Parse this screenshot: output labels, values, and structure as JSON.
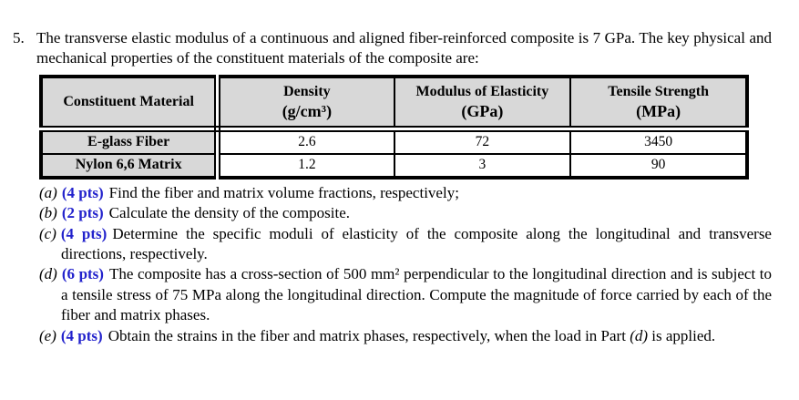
{
  "problem": {
    "number": "5.",
    "intro": "The transverse elastic modulus of a continuous and aligned fiber-reinforced composite is 7 GPa. The key physical and mechanical properties of the constituent materials of the composite are:"
  },
  "table": {
    "columns": [
      {
        "label": "Constituent Material",
        "unit": ""
      },
      {
        "label": "Density",
        "unit": "(g/cm³)"
      },
      {
        "label": "Modulus of Elasticity",
        "unit": "(GPa)"
      },
      {
        "label": "Tensile Strength",
        "unit": "(MPa)"
      }
    ],
    "rows": [
      {
        "material": "E-glass Fiber",
        "values": [
          "2.6",
          "72",
          "3450"
        ]
      },
      {
        "material": "Nylon 6,6 Matrix",
        "values": [
          "1.2",
          "3",
          "90"
        ]
      }
    ]
  },
  "parts": [
    {
      "marker": "(a)",
      "pts": "(4 pts)",
      "text": "Find the fiber and matrix volume fractions, respectively;"
    },
    {
      "marker": "(b)",
      "pts": "(2 pts)",
      "text": "Calculate the density of the composite."
    },
    {
      "marker": "(c)",
      "pts": "(4 pts)",
      "text": "Determine the specific moduli of elasticity of the composite along the longitudinal and transverse directions, respectively."
    },
    {
      "marker": "(d)",
      "pts": "(6 pts)",
      "text": "The composite has a cross-section of 500 mm² perpendicular to the longitudinal direction and is subject to a tensile stress of 75 MPa along the longitudinal direction. Compute the magnitude of force carried by each of the fiber and matrix phases."
    },
    {
      "marker": "(e)",
      "pts": "(4 pts)",
      "text_before": "Obtain the strains in the fiber and matrix phases, respectively, when the load in Part ",
      "text_ref": "(d)",
      "text_after": " is applied."
    }
  ],
  "colors": {
    "pts_blue": "#2222cc",
    "table_header_gray": "#d8d8d8",
    "text": "#000000",
    "background": "#ffffff"
  }
}
